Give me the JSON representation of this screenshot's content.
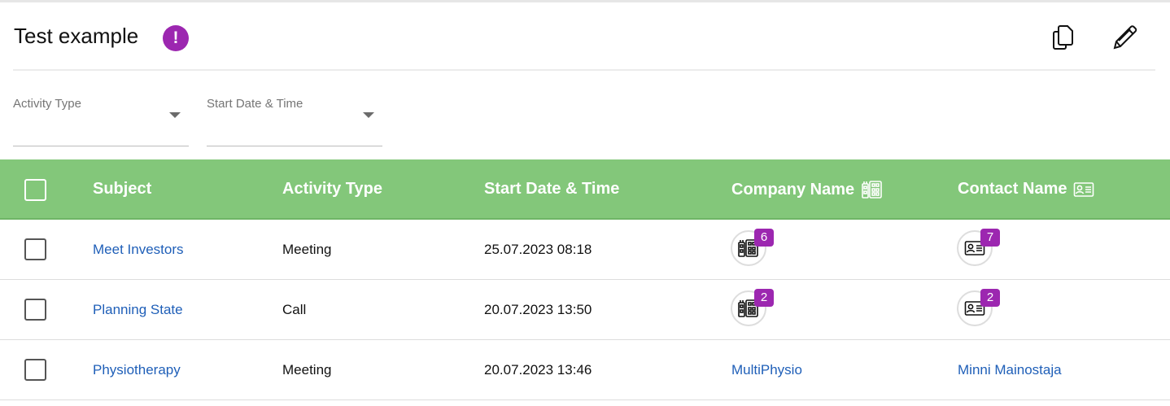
{
  "header": {
    "title": "Test example",
    "alert_symbol": "!",
    "alert_color": "#9c27b0",
    "copy_icon": "copy-icon",
    "edit_icon": "pencil-icon"
  },
  "filters": [
    {
      "label": "Activity Type"
    },
    {
      "label": "Start Date & Time"
    }
  ],
  "table": {
    "header_color": "#83c77a",
    "columns": [
      "Subject",
      "Activity Type",
      "Start Date & Time",
      "Company Name",
      "Contact Name"
    ],
    "rows": [
      {
        "subject": "Meet Investors",
        "activity_type": "Meeting",
        "start": "25.07.2023 08:18",
        "company_count": "6",
        "contact_count": "7"
      },
      {
        "subject": "Planning State",
        "activity_type": "Call",
        "start": "20.07.2023 13:50",
        "company_count": "2",
        "contact_count": "2"
      },
      {
        "subject": "Physiotherapy",
        "activity_type": "Meeting",
        "start": "20.07.2023 13:46",
        "company": "MultiPhysio",
        "contact": "Minni Mainostaja"
      }
    ]
  }
}
